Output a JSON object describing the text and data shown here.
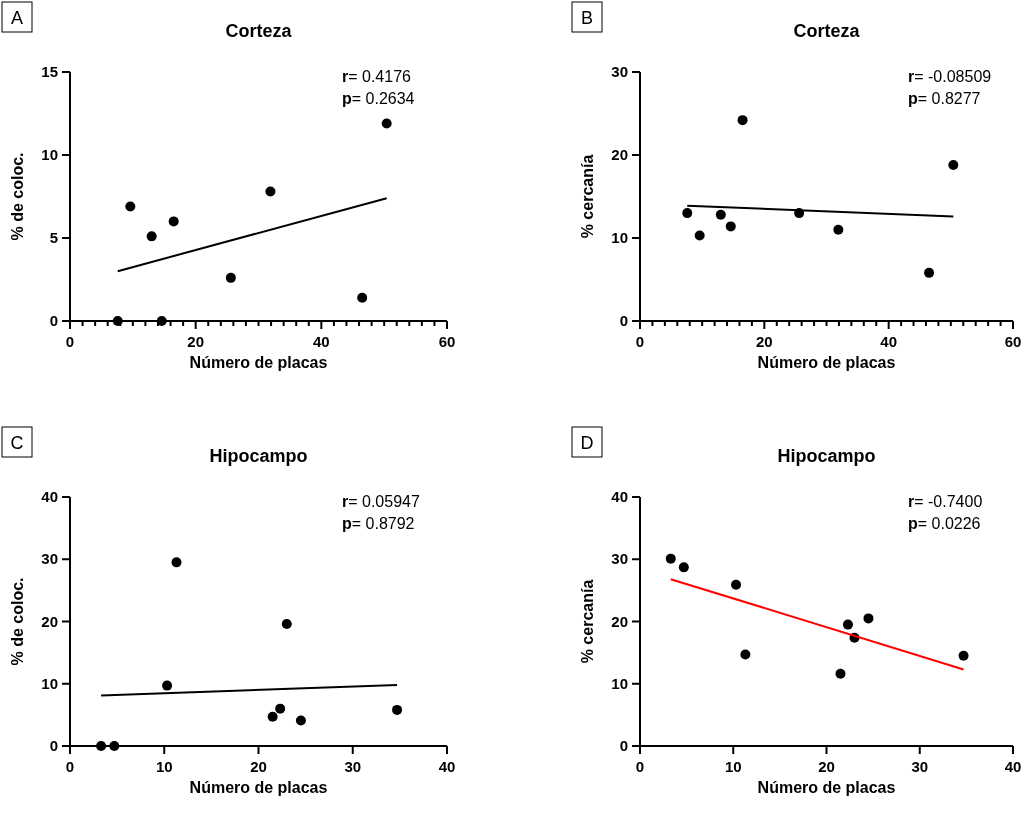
{
  "chart_data": [
    {
      "type": "scatter",
      "title": "Corteza",
      "xlabel": "Número de placas",
      "ylabel": "% de coloc.",
      "annotations": [
        "A",
        "r= 0.4176",
        "p= 0.2634"
      ],
      "xlim": [
        0,
        60
      ],
      "xticks": [
        0,
        {
          "value": 2,
          "label": null
        },
        {
          "value": 4,
          "label": null
        },
        {
          "value": 6,
          "label": null
        },
        {
          "value": 8,
          "label": null
        },
        {
          "value": 10,
          "label": null
        },
        {
          "value": 12,
          "label": null
        },
        {
          "value": 14,
          "label": null
        },
        {
          "value": 16,
          "label": null
        },
        {
          "value": 18,
          "label": null
        },
        20,
        {
          "value": 22,
          "label": null
        },
        {
          "value": 24,
          "label": null
        },
        {
          "value": 26,
          "label": null
        },
        {
          "value": 28,
          "label": null
        },
        {
          "value": 30,
          "label": null
        },
        {
          "value": 32,
          "label": null
        },
        {
          "value": 34,
          "label": null
        },
        {
          "value": 36,
          "label": null
        },
        {
          "value": 38,
          "label": null
        },
        40,
        {
          "value": 42,
          "label": null
        },
        {
          "value": 44,
          "label": null
        },
        {
          "value": 46,
          "label": null
        },
        {
          "value": 48,
          "label": null
        },
        {
          "value": 50,
          "label": null
        },
        {
          "value": 52,
          "label": null
        },
        {
          "value": 54,
          "label": null
        },
        {
          "value": 56,
          "label": null
        },
        {
          "value": 58,
          "label": null
        },
        60
      ],
      "ylim": [
        0,
        15
      ],
      "yticks": [
        0,
        5,
        10,
        15
      ],
      "grid": false,
      "series": [
        {
          "color": "#000000",
          "marker": "circle",
          "x": [
            7.6,
            9.6,
            13.0,
            14.6,
            16.5,
            25.6,
            31.9,
            46.5,
            50.4
          ],
          "values": [
            0,
            6.9,
            5.1,
            0,
            6.0,
            2.6,
            7.8,
            1.4,
            11.9
          ]
        },
        {
          "type": "line",
          "color": "#000000",
          "marker": "none",
          "x": [
            7.6,
            50.4
          ],
          "values": [
            3.0,
            7.4
          ]
        }
      ]
    },
    {
      "type": "scatter",
      "title": "Corteza",
      "xlabel": "Número de placas",
      "ylabel": "% cercanía",
      "annotations": [
        "B",
        "r= -0.08509",
        "p= 0.8277"
      ],
      "xlim": [
        0,
        60
      ],
      "xticks": [
        0,
        {
          "value": 2,
          "label": null
        },
        {
          "value": 4,
          "label": null
        },
        {
          "value": 6,
          "label": null
        },
        {
          "value": 8,
          "label": null
        },
        {
          "value": 10,
          "label": null
        },
        {
          "value": 12,
          "label": null
        },
        {
          "value": 14,
          "label": null
        },
        {
          "value": 16,
          "label": null
        },
        {
          "value": 18,
          "label": null
        },
        20,
        {
          "value": 22,
          "label": null
        },
        {
          "value": 24,
          "label": null
        },
        {
          "value": 26,
          "label": null
        },
        {
          "value": 28,
          "label": null
        },
        {
          "value": 30,
          "label": null
        },
        {
          "value": 32,
          "label": null
        },
        {
          "value": 34,
          "label": null
        },
        {
          "value": 36,
          "label": null
        },
        {
          "value": 38,
          "label": null
        },
        40,
        {
          "value": 42,
          "label": null
        },
        {
          "value": 44,
          "label": null
        },
        {
          "value": 46,
          "label": null
        },
        {
          "value": 48,
          "label": null
        },
        {
          "value": 50,
          "label": null
        },
        {
          "value": 52,
          "label": null
        },
        {
          "value": 54,
          "label": null
        },
        {
          "value": 56,
          "label": null
        },
        {
          "value": 58,
          "label": null
        },
        60
      ],
      "ylim": [
        0,
        30
      ],
      "yticks": [
        0,
        10,
        20,
        30
      ],
      "grid": false,
      "series": [
        {
          "color": "#000000",
          "marker": "circle",
          "x": [
            7.6,
            9.6,
            13.0,
            14.6,
            16.5,
            25.6,
            31.9,
            46.5,
            50.4
          ],
          "values": [
            13.0,
            10.3,
            12.8,
            11.4,
            24.2,
            13.0,
            11.0,
            5.8,
            18.8
          ]
        },
        {
          "type": "line",
          "color": "#000000",
          "marker": "none",
          "x": [
            7.6,
            50.4
          ],
          "values": [
            13.9,
            12.6
          ]
        }
      ]
    },
    {
      "type": "scatter",
      "title": "Hipocampo",
      "xlabel": "Número de placas",
      "ylabel": "% de coloc.",
      "annotations": [
        "C",
        "r= 0.05947",
        "p= 0.8792"
      ],
      "xlim": [
        0,
        40
      ],
      "xticks": [
        0,
        10,
        20,
        30,
        40
      ],
      "ylim": [
        0,
        40
      ],
      "yticks": [
        0,
        10,
        20,
        30,
        40
      ],
      "grid": false,
      "series": [
        {
          "color": "#000000",
          "marker": "circle",
          "x": [
            3.3,
            4.7,
            10.3,
            11.3,
            21.5,
            22.3,
            23.0,
            24.5,
            34.7
          ],
          "values": [
            0,
            0,
            9.7,
            29.5,
            4.7,
            6.0,
            19.6,
            4.1,
            5.8
          ]
        },
        {
          "type": "line",
          "color": "#000000",
          "marker": "none",
          "x": [
            3.3,
            34.7
          ],
          "values": [
            8.1,
            9.8
          ]
        }
      ]
    },
    {
      "type": "scatter",
      "title": "Hipocampo",
      "xlabel": "Número de placas",
      "ylabel": "% cercanía",
      "annotations": [
        "D",
        "r= -0.7400",
        "p= 0.0226"
      ],
      "xlim": [
        0,
        40
      ],
      "xticks": [
        0,
        10,
        20,
        30,
        40
      ],
      "ylim": [
        0,
        40
      ],
      "yticks": [
        0,
        10,
        20,
        30,
        40
      ],
      "grid": false,
      "series": [
        {
          "color": "#000000",
          "marker": "circle",
          "x": [
            3.3,
            4.7,
            10.3,
            11.3,
            21.5,
            22.3,
            23.0,
            24.5,
            34.7
          ],
          "values": [
            30.1,
            28.7,
            25.9,
            14.7,
            11.6,
            19.5,
            17.4,
            20.5,
            14.5
          ]
        },
        {
          "type": "line",
          "color": "#ff0000",
          "marker": "none",
          "x": [
            3.3,
            34.7
          ],
          "values": [
            26.8,
            12.3
          ]
        }
      ]
    }
  ]
}
